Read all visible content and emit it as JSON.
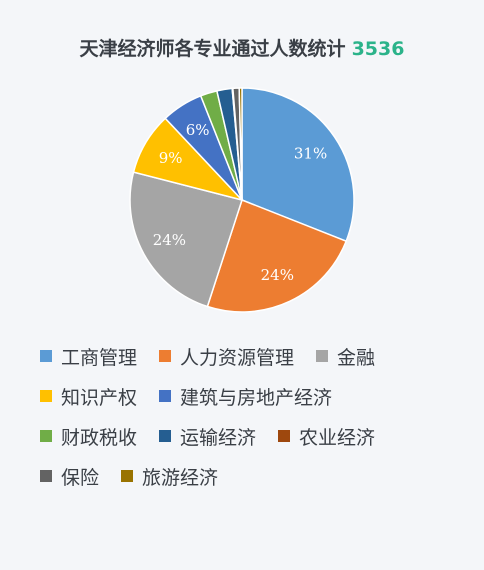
{
  "header": {
    "title": "天津经济师各专业通过人数统计",
    "total": "3536"
  },
  "chart_data": {
    "type": "pie",
    "categories": [
      "工商管理",
      "人力资源管理",
      "金融",
      "知识产权",
      "建筑与房地产经济",
      "财政税收",
      "运输经济",
      "农业经济",
      "保险",
      "旅游经济"
    ],
    "values": [
      31,
      24,
      24,
      9,
      6,
      2.4,
      2.2,
      0.1,
      0.9,
      0.4
    ],
    "data_labels": [
      "31%",
      "24%",
      "24%",
      "9%",
      "6%",
      "",
      "",
      "",
      "",
      ""
    ],
    "colors": [
      "#5b9bd5",
      "#ed7d31",
      "#a5a5a5",
      "#ffc000",
      "#4472c4",
      "#70ad47",
      "#255e91",
      "#9e480e",
      "#636363",
      "#997300"
    ],
    "legend_position": "bottom"
  }
}
